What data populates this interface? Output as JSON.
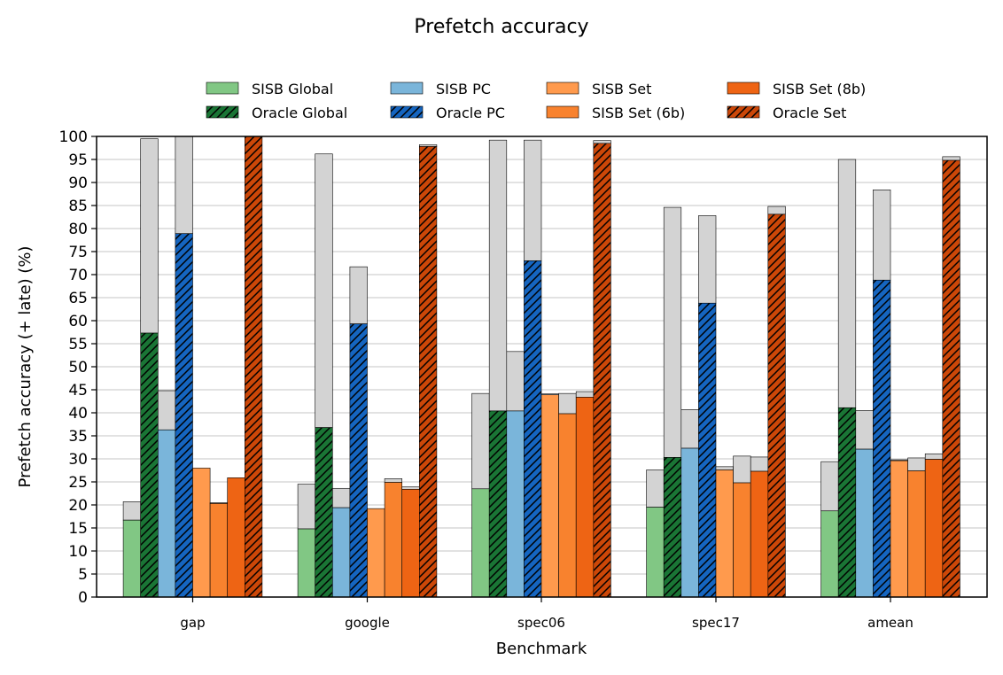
{
  "chart_data": {
    "type": "bar",
    "title": "Prefetch accuracy",
    "xlabel": "Benchmark",
    "ylabel": "Prefetch accuracy (+ late) (%)",
    "ylim": [
      0,
      100
    ],
    "yticks": [
      0,
      5,
      10,
      15,
      20,
      25,
      30,
      35,
      40,
      45,
      50,
      55,
      60,
      65,
      70,
      75,
      80,
      85,
      90,
      95,
      100
    ],
    "grid": "horizontal",
    "legend_position": "top",
    "categories": [
      "gap",
      "google",
      "spec06",
      "spec17",
      "amean"
    ],
    "late_color": "#d3d3d3",
    "series": [
      {
        "name": "SISB Global",
        "color": "#81c784",
        "hatch": false,
        "values": [
          16.7,
          14.8,
          23.5,
          19.5,
          18.7
        ],
        "late": [
          20.7,
          24.5,
          44.2,
          27.6,
          29.4
        ]
      },
      {
        "name": "Oracle Global",
        "color": "#1a7535",
        "hatch": true,
        "values": [
          57.3,
          36.8,
          40.4,
          30.3,
          41.1
        ],
        "late": [
          99.5,
          96.2,
          99.2,
          84.6,
          95.0
        ]
      },
      {
        "name": "SISB PC",
        "color": "#7ab5da",
        "hatch": false,
        "values": [
          36.3,
          19.4,
          40.4,
          32.3,
          32.1
        ],
        "late": [
          44.8,
          23.6,
          53.3,
          40.7,
          40.5
        ]
      },
      {
        "name": "Oracle PC",
        "color": "#1565c0",
        "hatch": true,
        "values": [
          78.9,
          59.3,
          73.0,
          63.8,
          68.8
        ],
        "late": [
          100,
          71.7,
          99.2,
          82.8,
          88.4
        ]
      },
      {
        "name": "SISB Set",
        "color": "#ff9a4d",
        "hatch": false,
        "values": [
          28.0,
          19.2,
          43.9,
          27.6,
          29.6
        ],
        "late": [
          28.0,
          19.2,
          44.1,
          28.3,
          29.8
        ]
      },
      {
        "name": "SISB Set (6b)",
        "color": "#f8822e",
        "hatch": false,
        "values": [
          20.3,
          24.9,
          39.8,
          24.8,
          27.4
        ],
        "late": [
          20.5,
          25.7,
          44.2,
          30.6,
          30.2
        ]
      },
      {
        "name": "SISB Set (8b)",
        "color": "#ee6414",
        "hatch": false,
        "values": [
          25.9,
          23.4,
          43.4,
          27.3,
          29.9
        ],
        "late": [
          25.9,
          23.9,
          44.6,
          30.4,
          31.1
        ]
      },
      {
        "name": "Oracle Set",
        "color": "#cc4708",
        "hatch": true,
        "values": [
          100,
          97.8,
          98.5,
          83.1,
          94.8
        ],
        "late": [
          100,
          98.2,
          99.1,
          84.8,
          95.6
        ]
      }
    ]
  }
}
